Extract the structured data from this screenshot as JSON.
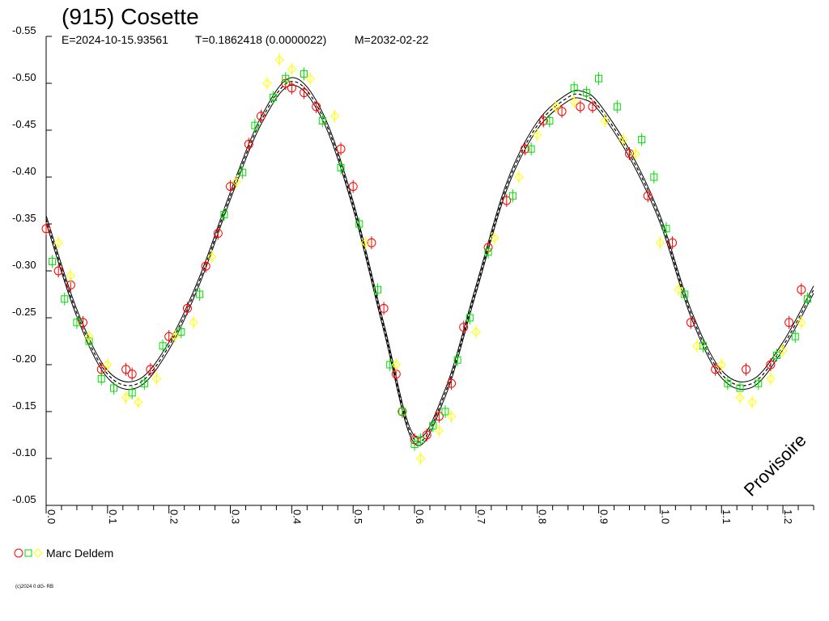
{
  "header": {
    "title": "(915) Cosette",
    "epoch": "E=2024-10-15.93561",
    "period": "T=0.1862418 (0.0000022)",
    "modified": "M=2032-02-22"
  },
  "footer": {
    "copyright": "(c)2024 0 dG- RB"
  },
  "watermark": "Provisoire",
  "legend": {
    "observer": "Marc Deldem"
  },
  "colors": {
    "series_a": "#ff0000",
    "series_b": "#00dd00",
    "series_c": "#ffff00",
    "curve": "#000000"
  },
  "chart_data": {
    "type": "scatter",
    "title": "(915) Cosette",
    "xlim": [
      0.0,
      1.25
    ],
    "ylim": [
      -0.55,
      -0.05
    ],
    "y_inverted": true,
    "x_ticks": [
      "0.0",
      "0.1",
      "0.2",
      "0.3",
      "0.4",
      "0.5",
      "0.6",
      "0.7",
      "0.8",
      "0.9",
      "1.0",
      "1.1",
      "1.2"
    ],
    "y_ticks": [
      "-0.55",
      "-0.50",
      "-0.45",
      "-0.40",
      "-0.35",
      "-0.30",
      "-0.25",
      "-0.20",
      "-0.15",
      "-0.10",
      "-0.05"
    ],
    "fit_curve": {
      "x": [
        0.0,
        0.05,
        0.1,
        0.15,
        0.2,
        0.25,
        0.3,
        0.35,
        0.4,
        0.45,
        0.5,
        0.55,
        0.6,
        0.65,
        0.7,
        0.75,
        0.8,
        0.85,
        0.875,
        0.9,
        0.95,
        1.0,
        1.05,
        1.1,
        1.15,
        1.2,
        1.25
      ],
      "y": [
        -0.355,
        -0.255,
        -0.19,
        -0.18,
        -0.22,
        -0.29,
        -0.38,
        -0.46,
        -0.502,
        -0.465,
        -0.37,
        -0.24,
        -0.12,
        -0.17,
        -0.28,
        -0.39,
        -0.455,
        -0.485,
        -0.487,
        -0.475,
        -0.425,
        -0.355,
        -0.255,
        -0.19,
        -0.18,
        -0.22,
        -0.28
      ]
    },
    "series": [
      {
        "marker": "circle",
        "color": "#ff0000",
        "x": [
          0.0,
          0.02,
          0.04,
          0.06,
          0.09,
          0.13,
          0.14,
          0.17,
          0.2,
          0.23,
          0.26,
          0.28,
          0.3,
          0.33,
          0.35,
          0.39,
          0.4,
          0.42,
          0.44,
          0.48,
          0.5,
          0.53,
          0.55,
          0.57,
          0.58,
          0.6,
          0.62,
          0.64,
          0.66,
          0.68,
          0.72,
          0.75,
          0.78,
          0.81,
          0.84,
          0.87,
          0.89,
          0.95,
          0.98,
          1.02,
          1.05,
          1.09,
          1.14,
          1.18,
          1.21,
          1.23
        ],
        "y": [
          -0.345,
          -0.3,
          -0.285,
          -0.245,
          -0.195,
          -0.195,
          -0.19,
          -0.195,
          -0.23,
          -0.26,
          -0.305,
          -0.34,
          -0.39,
          -0.435,
          -0.465,
          -0.5,
          -0.495,
          -0.49,
          -0.475,
          -0.43,
          -0.39,
          -0.33,
          -0.26,
          -0.19,
          -0.15,
          -0.12,
          -0.125,
          -0.145,
          -0.18,
          -0.24,
          -0.325,
          -0.375,
          -0.43,
          -0.46,
          -0.47,
          -0.475,
          -0.475,
          -0.425,
          -0.38,
          -0.33,
          -0.245,
          -0.195,
          -0.195,
          -0.2,
          -0.245,
          -0.28
        ]
      },
      {
        "marker": "square",
        "color": "#00dd00",
        "x": [
          0.01,
          0.03,
          0.05,
          0.07,
          0.09,
          0.11,
          0.14,
          0.16,
          0.19,
          0.22,
          0.25,
          0.29,
          0.32,
          0.34,
          0.37,
          0.39,
          0.42,
          0.45,
          0.48,
          0.51,
          0.54,
          0.56,
          0.58,
          0.6,
          0.61,
          0.63,
          0.65,
          0.67,
          0.69,
          0.72,
          0.76,
          0.79,
          0.82,
          0.86,
          0.88,
          0.9,
          0.93,
          0.97,
          0.99,
          1.01,
          1.04,
          1.07,
          1.11,
          1.13,
          1.16,
          1.19,
          1.22,
          1.24
        ],
        "y": [
          -0.31,
          -0.27,
          -0.245,
          -0.225,
          -0.185,
          -0.175,
          -0.17,
          -0.18,
          -0.22,
          -0.235,
          -0.275,
          -0.36,
          -0.405,
          -0.455,
          -0.485,
          -0.505,
          -0.51,
          -0.46,
          -0.41,
          -0.35,
          -0.28,
          -0.2,
          -0.15,
          -0.115,
          -0.12,
          -0.135,
          -0.15,
          -0.205,
          -0.25,
          -0.32,
          -0.38,
          -0.43,
          -0.46,
          -0.495,
          -0.49,
          -0.505,
          -0.475,
          -0.44,
          -0.4,
          -0.345,
          -0.275,
          -0.22,
          -0.18,
          -0.175,
          -0.18,
          -0.21,
          -0.23,
          -0.27
        ]
      },
      {
        "marker": "diamond",
        "color": "#ffff00",
        "x": [
          0.02,
          0.04,
          0.07,
          0.1,
          0.13,
          0.15,
          0.18,
          0.21,
          0.24,
          0.27,
          0.31,
          0.36,
          0.38,
          0.4,
          0.43,
          0.47,
          0.52,
          0.57,
          0.61,
          0.64,
          0.66,
          0.7,
          0.73,
          0.77,
          0.8,
          0.83,
          0.86,
          0.91,
          0.94,
          0.96,
          1.0,
          1.03,
          1.06,
          1.1,
          1.13,
          1.15,
          1.18,
          1.2,
          1.23
        ],
        "y": [
          -0.33,
          -0.295,
          -0.23,
          -0.2,
          -0.165,
          -0.16,
          -0.185,
          -0.23,
          -0.245,
          -0.315,
          -0.395,
          -0.5,
          -0.525,
          -0.515,
          -0.505,
          -0.465,
          -0.33,
          -0.2,
          -0.1,
          -0.13,
          -0.145,
          -0.235,
          -0.335,
          -0.4,
          -0.445,
          -0.475,
          -0.48,
          -0.46,
          -0.44,
          -0.425,
          -0.33,
          -0.28,
          -0.22,
          -0.2,
          -0.165,
          -0.16,
          -0.185,
          -0.215,
          -0.245
        ]
      }
    ]
  }
}
